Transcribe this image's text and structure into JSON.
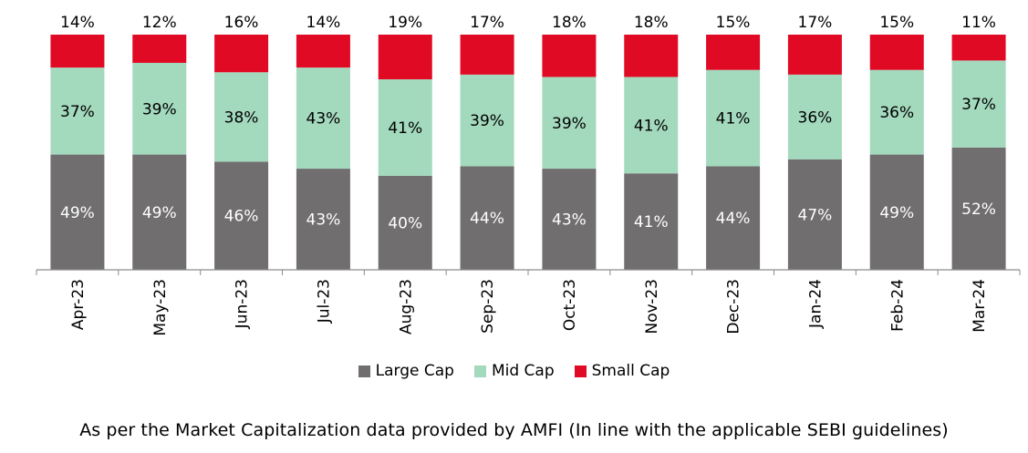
{
  "chart_data": {
    "type": "bar",
    "stacked": true,
    "categories": [
      "Apr-23",
      "May-23",
      "Jun-23",
      "Jul-23",
      "Aug-23",
      "Sep-23",
      "Oct-23",
      "Nov-23",
      "Dec-23",
      "Jan-24",
      "Feb-24",
      "Mar-24"
    ],
    "series": [
      {
        "name": "Large Cap",
        "color": "#706e6f",
        "values": [
          49,
          49,
          46,
          43,
          40,
          44,
          43,
          41,
          44,
          47,
          49,
          52
        ]
      },
      {
        "name": "Mid Cap",
        "color": "#a3d9bd",
        "values": [
          37,
          39,
          38,
          43,
          41,
          39,
          39,
          41,
          41,
          36,
          36,
          37
        ]
      },
      {
        "name": "Small Cap",
        "color": "#e10a24",
        "values": [
          14,
          12,
          16,
          14,
          19,
          17,
          18,
          18,
          15,
          17,
          15,
          11
        ]
      }
    ],
    "value_suffix": "%",
    "ylim": [
      0,
      100
    ],
    "grid": false,
    "legend_position": "bottom",
    "caption": "As per the Market Capitalization data provided by AMFI (In line with the applicable SEBI guidelines)"
  }
}
